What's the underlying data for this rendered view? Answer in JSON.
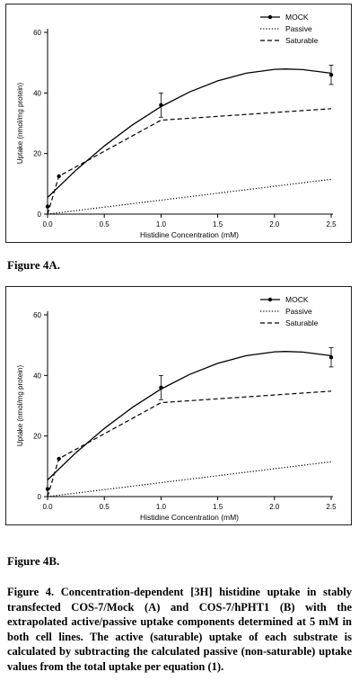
{
  "figures": [
    {
      "label": "Figure 4A."
    },
    {
      "label": "Figure 4B."
    }
  ],
  "caption": {
    "text": "Figure 4. Concentration-dependent [3H] histidine uptake in stably transfected COS-7/Mock (A) and COS-7/hPHT1 (B) with the extrapolated active/passive uptake components determined at 5 mM in both cell lines. The active (saturable) uptake of each substrate is calculated by subtracting the calculated passive (non-saturable) uptake values from the total uptake per equation (1)."
  },
  "chart_data": [
    {
      "type": "line",
      "title": "",
      "xlabel": "Histidine Concentration (mM)",
      "ylabel": "Uptake (nmol/mg protein)",
      "xlim": [
        0,
        2.5
      ],
      "ylim": [
        0,
        60
      ],
      "x_ticks": [
        "0.0",
        "0.5",
        "1.0",
        "1.5",
        "2.0",
        "2.5"
      ],
      "y_ticks": [
        "0",
        "20",
        "40",
        "60"
      ],
      "legend_position": "top-right",
      "grid": false,
      "series": [
        {
          "name": "MOCK",
          "style": "solid-markers",
          "points": [
            {
              "x": 0.0,
              "y": 2.5,
              "err": 0
            },
            {
              "x": 0.1,
              "y": 12.5,
              "err": 0
            },
            {
              "x": 1.0,
              "y": 36.0,
              "err": 4.0
            },
            {
              "x": 2.5,
              "y": 46.0,
              "err": 3.2
            }
          ],
          "fit": [
            [
              0.0,
              5.5
            ],
            [
              0.25,
              14.5
            ],
            [
              0.5,
              22.5
            ],
            [
              0.75,
              29.5
            ],
            [
              1.0,
              35.5
            ],
            [
              1.25,
              40.3
            ],
            [
              1.5,
              44.0
            ],
            [
              1.75,
              46.5
            ],
            [
              2.0,
              47.8
            ],
            [
              2.1,
              47.9
            ],
            [
              2.25,
              47.7
            ],
            [
              2.5,
              46.5
            ]
          ]
        },
        {
          "name": "Passive",
          "style": "dotted",
          "points": [
            [
              0.0,
              0.0
            ],
            [
              2.5,
              11.5
            ]
          ]
        },
        {
          "name": "Saturable",
          "style": "dashed",
          "points": [
            [
              0.0,
              0.0
            ],
            [
              0.1,
              12.5
            ],
            [
              1.0,
              31.0
            ],
            [
              2.5,
              34.8
            ]
          ]
        }
      ]
    },
    {
      "type": "line",
      "title": "",
      "xlabel": "Histidine Concentration (mM)",
      "ylabel": "Uptake (nmol/mg protein)",
      "xlim": [
        0,
        2.5
      ],
      "ylim": [
        0,
        60
      ],
      "x_ticks": [
        "0.0",
        "0.5",
        "1.0",
        "1.5",
        "2.0",
        "2.5"
      ],
      "y_ticks": [
        "0",
        "20",
        "40",
        "60"
      ],
      "legend_position": "top-right",
      "grid": false,
      "series": [
        {
          "name": "MOCK",
          "style": "solid-markers",
          "points": [
            {
              "x": 0.0,
              "y": 2.5,
              "err": 0
            },
            {
              "x": 0.1,
              "y": 12.5,
              "err": 0
            },
            {
              "x": 1.0,
              "y": 36.0,
              "err": 4.0
            },
            {
              "x": 2.5,
              "y": 46.0,
              "err": 3.2
            }
          ],
          "fit": [
            [
              0.0,
              5.5
            ],
            [
              0.25,
              14.5
            ],
            [
              0.5,
              22.5
            ],
            [
              0.75,
              29.5
            ],
            [
              1.0,
              35.5
            ],
            [
              1.25,
              40.3
            ],
            [
              1.5,
              44.0
            ],
            [
              1.75,
              46.5
            ],
            [
              2.0,
              47.8
            ],
            [
              2.1,
              47.9
            ],
            [
              2.25,
              47.7
            ],
            [
              2.5,
              46.5
            ]
          ]
        },
        {
          "name": "Passive",
          "style": "dotted",
          "points": [
            [
              0.0,
              0.0
            ],
            [
              2.5,
              11.5
            ]
          ]
        },
        {
          "name": "Saturable",
          "style": "dashed",
          "points": [
            [
              0.0,
              0.0
            ],
            [
              0.1,
              12.5
            ],
            [
              1.0,
              31.0
            ],
            [
              2.5,
              34.8
            ]
          ]
        }
      ]
    }
  ]
}
